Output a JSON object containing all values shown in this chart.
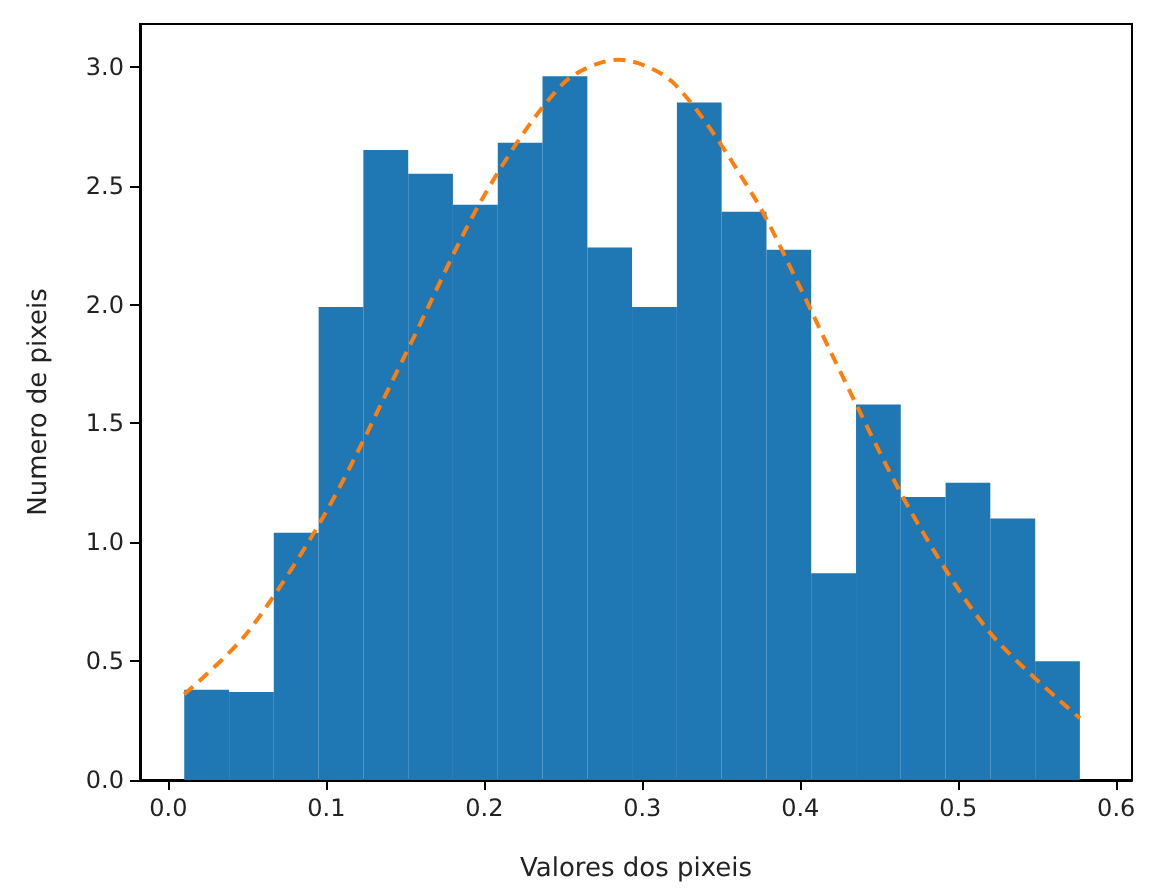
{
  "chart_data": {
    "type": "histogram",
    "xlabel": "Valores dos pixeis",
    "ylabel": "Numero de pixeis",
    "bins": [
      0.01,
      0.0384,
      0.0667,
      0.0951,
      0.1234,
      0.1518,
      0.1801,
      0.2085,
      0.2368,
      0.2652,
      0.2935,
      0.3219,
      0.3502,
      0.3786,
      0.4069,
      0.4353,
      0.4636,
      0.492,
      0.5203,
      0.5487,
      0.577
    ],
    "values": [
      0.38,
      0.37,
      1.04,
      1.99,
      2.65,
      2.55,
      2.42,
      2.68,
      2.96,
      2.24,
      1.99,
      2.85,
      2.39,
      2.23,
      0.87,
      1.58,
      1.19,
      1.25,
      1.1,
      0.5
    ],
    "color": "#1f77b4",
    "series": [
      {
        "type": "line",
        "color": "#ff7f0e",
        "line_style": "dashed",
        "x": [
          0.01,
          0.05,
          0.1,
          0.15,
          0.2,
          0.25,
          0.285,
          0.32,
          0.37,
          0.4,
          0.42,
          0.47,
          0.52,
          0.577
        ],
        "values": [
          0.36,
          0.62,
          1.13,
          1.79,
          2.46,
          2.93,
          3.03,
          2.93,
          2.46,
          2.07,
          1.79,
          1.13,
          0.62,
          0.26
        ]
      }
    ],
    "xlim": [
      -0.018,
      0.61
    ],
    "ylim": [
      0,
      3.18
    ],
    "xticks": [
      {
        "value": 0,
        "label": "0.0"
      },
      {
        "value": 0.1,
        "label": "0.1"
      },
      {
        "value": 0.2,
        "label": "0.2"
      },
      {
        "value": 0.3,
        "label": "0.3"
      },
      {
        "value": 0.4,
        "label": "0.4"
      },
      {
        "value": 0.5,
        "label": "0.5"
      },
      {
        "value": 0.6,
        "label": "0.6"
      }
    ],
    "yticks": [
      {
        "value": 0,
        "label": "0.0"
      },
      {
        "value": 0.5,
        "label": "0.5"
      },
      {
        "value": 1,
        "label": "1.0"
      },
      {
        "value": 1.5,
        "label": "1.5"
      },
      {
        "value": 2,
        "label": "2.0"
      },
      {
        "value": 2.5,
        "label": "2.5"
      },
      {
        "value": 3,
        "label": "3.0"
      }
    ],
    "grid": false,
    "marker": "none"
  }
}
